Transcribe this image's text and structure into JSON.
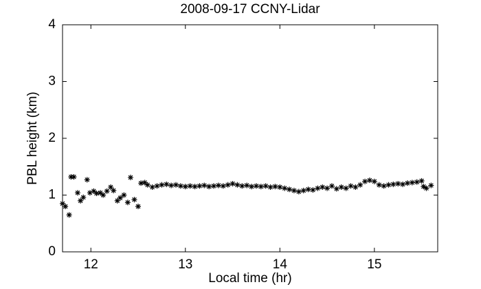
{
  "chart_data": {
    "type": "scatter",
    "title": "2008-09-17 CCNY-Lidar",
    "x_label": "Local time (hr)",
    "y_label": "PBL height (km)",
    "xlim": [
      11.7,
      15.67
    ],
    "ylim": [
      0,
      4
    ],
    "xticks": [
      12,
      13,
      14,
      15
    ],
    "yticks": [
      0,
      1,
      2,
      3,
      4
    ],
    "grid": false,
    "marker": "asterisk",
    "color": "#000000",
    "x": [
      11.7,
      11.73,
      11.77,
      11.79,
      11.82,
      11.86,
      11.89,
      11.92,
      11.96,
      11.99,
      12.03,
      12.06,
      12.1,
      12.13,
      12.17,
      12.21,
      12.24,
      12.28,
      12.31,
      12.35,
      12.39,
      12.42,
      12.46,
      12.5,
      12.53,
      12.57,
      12.6,
      12.65,
      12.7,
      12.75,
      12.8,
      12.85,
      12.9,
      12.95,
      13.0,
      13.05,
      13.1,
      13.15,
      13.2,
      13.25,
      13.3,
      13.35,
      13.4,
      13.45,
      13.5,
      13.55,
      13.6,
      13.65,
      13.7,
      13.75,
      13.8,
      13.85,
      13.9,
      13.95,
      14.0,
      14.05,
      14.1,
      14.15,
      14.2,
      14.25,
      14.3,
      14.35,
      14.4,
      14.45,
      14.5,
      14.55,
      14.6,
      14.65,
      14.7,
      14.75,
      14.8,
      14.85,
      14.9,
      14.95,
      15.0,
      15.05,
      15.1,
      15.15,
      15.2,
      15.25,
      15.3,
      15.35,
      15.4,
      15.45,
      15.5,
      15.52,
      15.55,
      15.6
    ],
    "values": [
      0.85,
      0.8,
      0.65,
      1.32,
      1.32,
      1.04,
      0.9,
      0.96,
      1.27,
      1.04,
      1.07,
      1.03,
      1.04,
      1.0,
      1.07,
      1.14,
      1.08,
      0.9,
      0.95,
      1.0,
      0.87,
      1.31,
      0.92,
      0.8,
      1.21,
      1.22,
      1.18,
      1.14,
      1.16,
      1.18,
      1.19,
      1.17,
      1.18,
      1.16,
      1.15,
      1.16,
      1.15,
      1.16,
      1.17,
      1.15,
      1.16,
      1.17,
      1.16,
      1.18,
      1.2,
      1.18,
      1.16,
      1.17,
      1.15,
      1.16,
      1.15,
      1.16,
      1.14,
      1.15,
      1.14,
      1.12,
      1.1,
      1.08,
      1.06,
      1.08,
      1.1,
      1.09,
      1.12,
      1.14,
      1.12,
      1.16,
      1.11,
      1.14,
      1.12,
      1.16,
      1.14,
      1.18,
      1.24,
      1.26,
      1.24,
      1.18,
      1.16,
      1.18,
      1.19,
      1.2,
      1.19,
      1.21,
      1.22,
      1.23,
      1.25,
      1.15,
      1.12,
      1.17
    ]
  }
}
